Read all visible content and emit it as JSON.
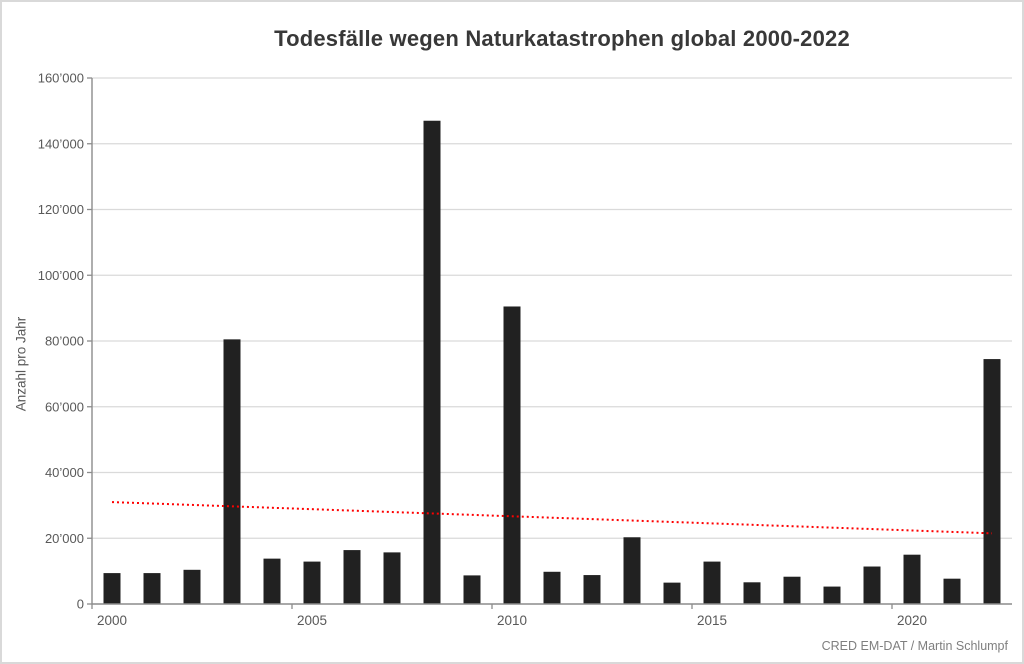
{
  "chart_data": {
    "type": "bar",
    "title": "Todesfälle wegen Naturkatastrophen global 2000-2022",
    "ylabel": "Anzahl pro Jahr",
    "xlabel": "",
    "categories": [
      2000,
      2001,
      2002,
      2003,
      2004,
      2005,
      2006,
      2007,
      2008,
      2009,
      2010,
      2011,
      2012,
      2013,
      2014,
      2015,
      2016,
      2017,
      2018,
      2019,
      2020,
      2021,
      2022
    ],
    "values": [
      9400,
      9400,
      10400,
      80500,
      13800,
      12900,
      16400,
      15700,
      147000,
      8700,
      90500,
      9800,
      8800,
      20300,
      6500,
      12900,
      6600,
      8300,
      5300,
      11400,
      15000,
      7700,
      74500
    ],
    "ylim": [
      0,
      160000
    ],
    "ytick_step": 20000,
    "ytick_labels": [
      "0",
      "20’000",
      "40’000",
      "60’000",
      "80’000",
      "100’000",
      "120’000",
      "140’000",
      "160’000"
    ],
    "xtick_labels": [
      "2000",
      "2005",
      "2010",
      "2015",
      "2020"
    ],
    "xtick_years": [
      2000,
      2005,
      2010,
      2015,
      2020
    ],
    "grid": true,
    "legend": "none",
    "bar_color": "#212121",
    "gridline_color": "#dadada",
    "axis_color": "#8c8c8c",
    "tick_label_color": "#595959",
    "trendline": {
      "style": "dotted",
      "color": "#ff0000",
      "start_year": 2000,
      "start_value": 31000,
      "end_year": 2022,
      "end_value": 21500
    }
  },
  "footer": {
    "attribution": "CRED EM-DAT / Martin Schlumpf"
  }
}
